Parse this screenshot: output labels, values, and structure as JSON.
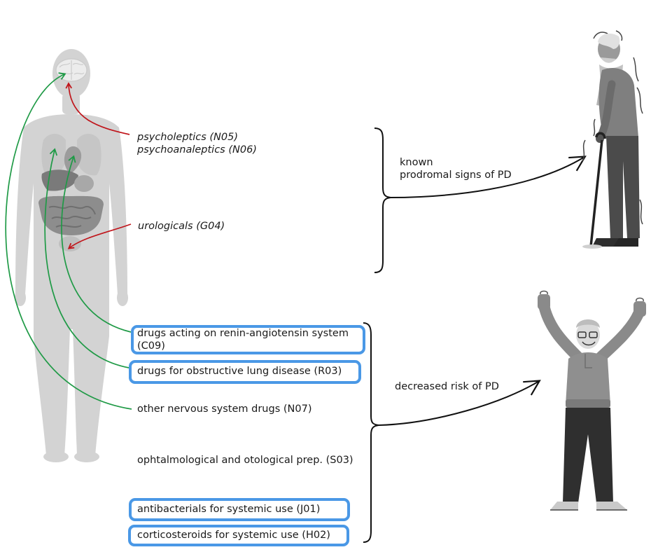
{
  "figure": {
    "risk_drugs": [
      {
        "text": "psycholeptics (N05)"
      },
      {
        "text": "psychoanaleptics (N06)"
      },
      {
        "text": "urologicals (G04)"
      }
    ],
    "protective_drugs": [
      {
        "text": "drugs acting on renin-angiotensin system",
        "text2": "(C09)",
        "highlighted": true
      },
      {
        "text": "drugs for obstructive lung disease (R03)",
        "highlighted": true
      },
      {
        "text": "other nervous system drugs (N07)",
        "highlighted": false
      },
      {
        "text": "ophtalmological and otological prep. (S03)",
        "highlighted": false
      },
      {
        "text": "antibacterials for systemic use (J01)",
        "highlighted": true
      },
      {
        "text": "corticosteroids for systemic use (H02)",
        "highlighted": true
      }
    ],
    "outcomes": {
      "known_line1": "known",
      "known_line2": "prodromal signs of PD",
      "decreased": "decreased risk of PD"
    },
    "colors": {
      "risk_arrow": "#c0151b",
      "protective_arrow": "#1f9a46",
      "highlight_box": "#4a98e6",
      "body_silhouette": "#d3d3d3"
    },
    "icons": [
      "human-body-anatomy-icon",
      "elderly-man-with-cane-icon",
      "cheerful-elderly-man-icon"
    ]
  }
}
